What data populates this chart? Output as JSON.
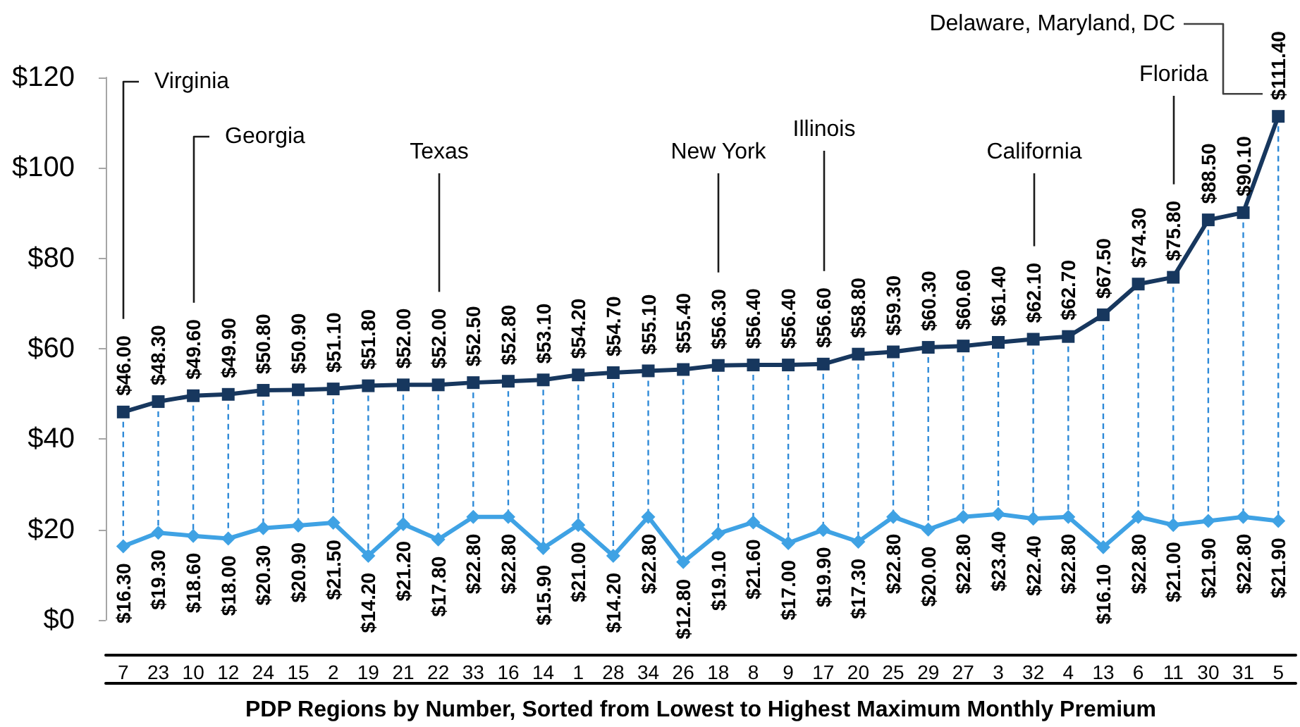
{
  "chart_data": {
    "type": "line",
    "xlabel": "PDP Regions by Number, Sorted from Lowest to Highest Maximum Monthly Premium",
    "categories": [
      "7",
      "23",
      "10",
      "12",
      "24",
      "15",
      "2",
      "19",
      "21",
      "22",
      "33",
      "16",
      "14",
      "1",
      "28",
      "34",
      "26",
      "18",
      "8",
      "9",
      "17",
      "20",
      "25",
      "29",
      "27",
      "3",
      "32",
      "4",
      "13",
      "6",
      "11",
      "30",
      "31",
      "5"
    ],
    "series": [
      {
        "color": "#17375e",
        "marker": "square",
        "values": [
          46.0,
          48.3,
          49.6,
          49.9,
          50.8,
          50.9,
          51.1,
          51.8,
          52.0,
          52.0,
          52.5,
          52.8,
          53.1,
          54.2,
          54.7,
          55.1,
          55.4,
          56.3,
          56.4,
          56.4,
          56.6,
          58.8,
          59.3,
          60.3,
          60.6,
          61.4,
          62.1,
          62.7,
          67.5,
          74.3,
          75.8,
          88.5,
          90.1,
          111.4
        ],
        "value_labels": [
          "$46.00",
          "$48.30",
          "$49.60",
          "$49.90",
          "$50.80",
          "$50.90",
          "$51.10",
          "$51.80",
          "$52.00",
          "$52.00",
          "$52.50",
          "$52.80",
          "$53.10",
          "$54.20",
          "$54.70",
          "$55.10",
          "$55.40",
          "$56.30",
          "$56.40",
          "$56.40",
          "$56.60",
          "$58.80",
          "$59.30",
          "$60.30",
          "$60.60",
          "$61.40",
          "$62.10",
          "$62.70",
          "$67.50",
          "$74.30",
          "$75.80",
          "$88.50",
          "$90.10",
          "$111.40"
        ]
      },
      {
        "color": "#3fa2e4",
        "marker": "diamond",
        "values": [
          16.3,
          19.3,
          18.6,
          18.0,
          20.3,
          20.9,
          21.5,
          14.2,
          21.2,
          17.8,
          22.8,
          22.8,
          15.9,
          21.0,
          14.2,
          22.8,
          12.8,
          19.1,
          21.6,
          17.0,
          19.9,
          17.3,
          22.8,
          20.0,
          22.8,
          23.4,
          22.4,
          22.8,
          16.1,
          22.8,
          21.0,
          21.9,
          22.8,
          21.9
        ],
        "value_labels": [
          "$16.30",
          "$19.30",
          "$18.60",
          "$18.00",
          "$20.30",
          "$20.90",
          "$21.50",
          "$14.20",
          "$21.20",
          "$17.80",
          "$22.80",
          "$22.80",
          "$15.90",
          "$21.00",
          "$14.20",
          "$22.80",
          "$12.80",
          "$19.10",
          "$21.60",
          "$17.00",
          "$19.90",
          "$17.30",
          "$22.80",
          "$20.00",
          "$22.80",
          "$23.40",
          "$22.40",
          "$22.80",
          "$16.10",
          "$22.80",
          "$21.00",
          "$21.90",
          "$22.80",
          "$21.90"
        ]
      }
    ],
    "ylim": [
      0,
      120
    ],
    "yticks": [
      {
        "value": 0,
        "label": "$0"
      },
      {
        "value": 20,
        "label": "$20"
      },
      {
        "value": 40,
        "label": "$40"
      },
      {
        "value": 60,
        "label": "$60"
      },
      {
        "value": 80,
        "label": "$80"
      },
      {
        "value": 100,
        "label": "$100"
      },
      {
        "value": 120,
        "label": "$120"
      }
    ],
    "annotations": [
      "Virginia",
      "Georgia",
      {
        "text": "Texas",
        "x": "22"
      },
      {
        "text": "New York",
        "x": "18"
      },
      {
        "text": "Illinois",
        "x": "17"
      },
      {
        "text": "California",
        "x": "32"
      },
      {
        "text": "Florida",
        "x": "11"
      },
      "Delaware, Maryland, DC"
    ]
  }
}
